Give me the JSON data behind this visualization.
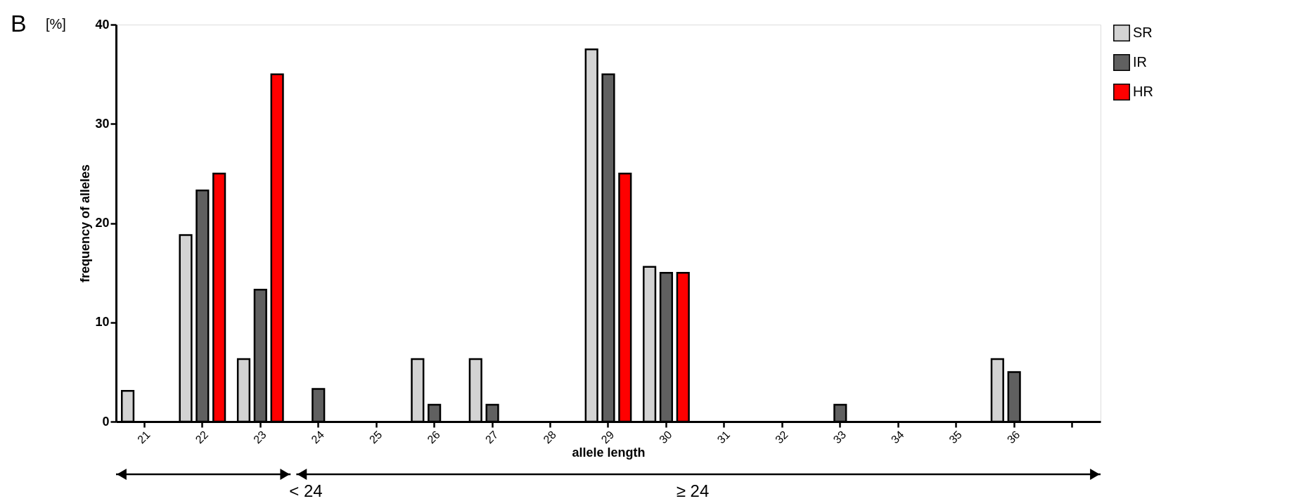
{
  "chart_data": {
    "type": "bar",
    "categories": [
      "21",
      "22",
      "23",
      "24",
      "25",
      "26",
      "27",
      "28",
      "29",
      "30",
      "31",
      "32",
      "33",
      "34",
      "35",
      "36",
      null
    ],
    "series": [
      {
        "name": "SR",
        "color": "#d3d3d3",
        "values": [
          3.1,
          18.8,
          6.3,
          null,
          null,
          6.3,
          6.3,
          null,
          37.5,
          15.6,
          null,
          null,
          null,
          null,
          null,
          6.3,
          null
        ]
      },
      {
        "name": "IR",
        "color": "#606060",
        "values": [
          null,
          23.3,
          13.3,
          3.3,
          null,
          1.7,
          1.7,
          null,
          35,
          15,
          null,
          null,
          1.7,
          null,
          null,
          5,
          null
        ]
      },
      {
        "name": "HR",
        "color": "#ff0000",
        "values": [
          null,
          25,
          35,
          null,
          null,
          null,
          null,
          null,
          25,
          15,
          null,
          null,
          null,
          null,
          null,
          null,
          null
        ]
      }
    ],
    "xlabel": "allele length",
    "ylabel": "frequency of alleles",
    "ylim": [
      0,
      40
    ],
    "yticks": [
      0,
      10,
      20,
      30,
      40
    ],
    "grid": false,
    "legend": "top right",
    "annotations": [
      "B",
      "[%]",
      "< 24",
      "≥ 24"
    ]
  }
}
